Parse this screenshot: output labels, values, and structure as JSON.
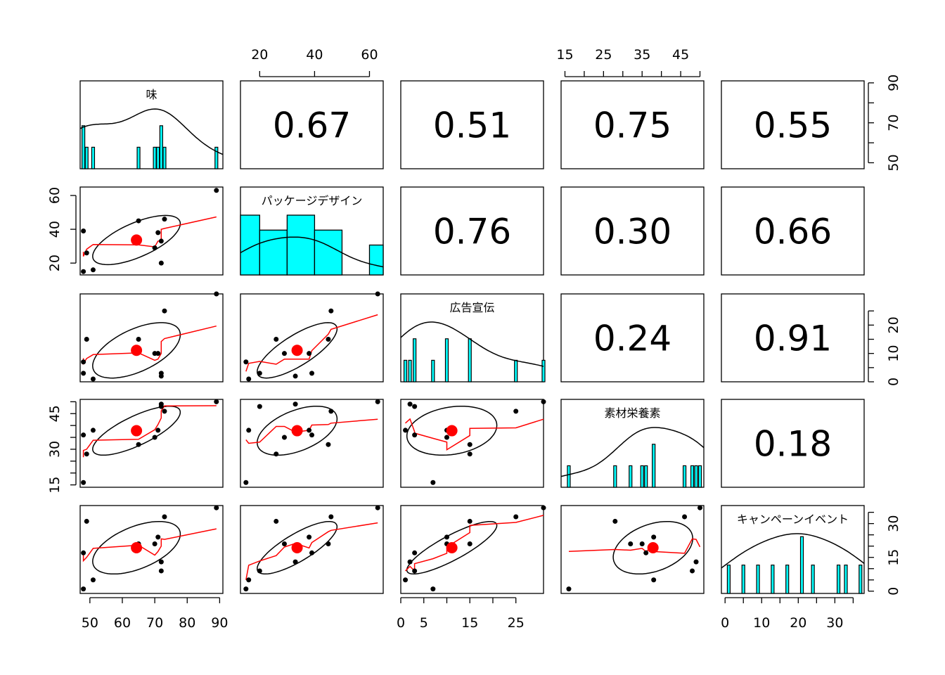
{
  "chart_data": {
    "type": "scatter",
    "variables": [
      "味",
      "パッケージデザイン",
      "広告宣伝",
      "素材栄養素",
      "キャンペーンイベント"
    ],
    "axes": [
      {
        "range": [
          47,
          91
        ],
        "ticks": [
          50,
          60,
          70,
          80,
          90
        ]
      },
      {
        "range": [
          13,
          65
        ],
        "ticks": [
          20,
          40,
          60
        ]
      },
      {
        "range": [
          0,
          31
        ],
        "ticks": [
          0,
          5,
          10,
          15,
          20,
          25
        ]
      },
      {
        "range": [
          14,
          51
        ],
        "ticks": [
          15,
          20,
          25,
          30,
          35,
          40,
          45,
          50
        ]
      },
      {
        "range": [
          -1,
          38
        ],
        "ticks": [
          0,
          5,
          10,
          15,
          20,
          25,
          30,
          35
        ]
      }
    ],
    "tick_labels": {
      "0": [
        "50",
        "60",
        "70",
        "80",
        "90"
      ],
      "1": [
        "20",
        "40",
        "60"
      ],
      "2": [
        "0",
        "5",
        "15",
        "25"
      ],
      "3": [
        "15",
        "25",
        "35",
        "45"
      ],
      "4": [
        "0",
        "10",
        "20",
        "30"
      ]
    },
    "right_tick_labels": {
      "0": [
        "50",
        "70",
        "90"
      ],
      "2": [
        "0",
        "10",
        "20"
      ],
      "4": [
        "0",
        "15",
        "30"
      ]
    },
    "left_tick_labels": {
      "1": [
        "20",
        "40",
        "60"
      ],
      "3": [
        "15",
        "30",
        "45"
      ]
    },
    "observations": [
      [
        48,
        15,
        7,
        16,
        1
      ],
      [
        48,
        39,
        3,
        36,
        17
      ],
      [
        49,
        26,
        15,
        28,
        31
      ],
      [
        51,
        16,
        1,
        38,
        5
      ],
      [
        65,
        45,
        15,
        32,
        21
      ],
      [
        70,
        29,
        10,
        35,
        21
      ],
      [
        71,
        38,
        10,
        38,
        24
      ],
      [
        72,
        33,
        2,
        49,
        13
      ],
      [
        72,
        20,
        3,
        48,
        9
      ],
      [
        73,
        46,
        25,
        46,
        33
      ],
      [
        89,
        63,
        31,
        50,
        37
      ]
    ],
    "correlations": [
      {
        "row": 0,
        "col": 1,
        "value": "0.67"
      },
      {
        "row": 0,
        "col": 2,
        "value": "0.51"
      },
      {
        "row": 0,
        "col": 3,
        "value": "0.75"
      },
      {
        "row": 0,
        "col": 4,
        "value": "0.55"
      },
      {
        "row": 1,
        "col": 2,
        "value": "0.76"
      },
      {
        "row": 1,
        "col": 3,
        "value": "0.30"
      },
      {
        "row": 1,
        "col": 4,
        "value": "0.66"
      },
      {
        "row": 2,
        "col": 3,
        "value": "0.24"
      },
      {
        "row": 2,
        "col": 4,
        "value": "0.91"
      },
      {
        "row": 3,
        "col": 4,
        "value": "0.18"
      }
    ],
    "histogram_pkg": {
      "breaks": [
        10,
        20,
        30,
        40,
        50,
        60,
        70
      ],
      "density": [
        0.036,
        0.027,
        0.036,
        0.027,
        0,
        0.018
      ]
    },
    "colors": {
      "point": "#000000",
      "mean": "#ff0000",
      "smooth": "#ff0000",
      "hist": "#00ffff",
      "ellipse": "#000000"
    },
    "grid": false,
    "legend": "none"
  }
}
